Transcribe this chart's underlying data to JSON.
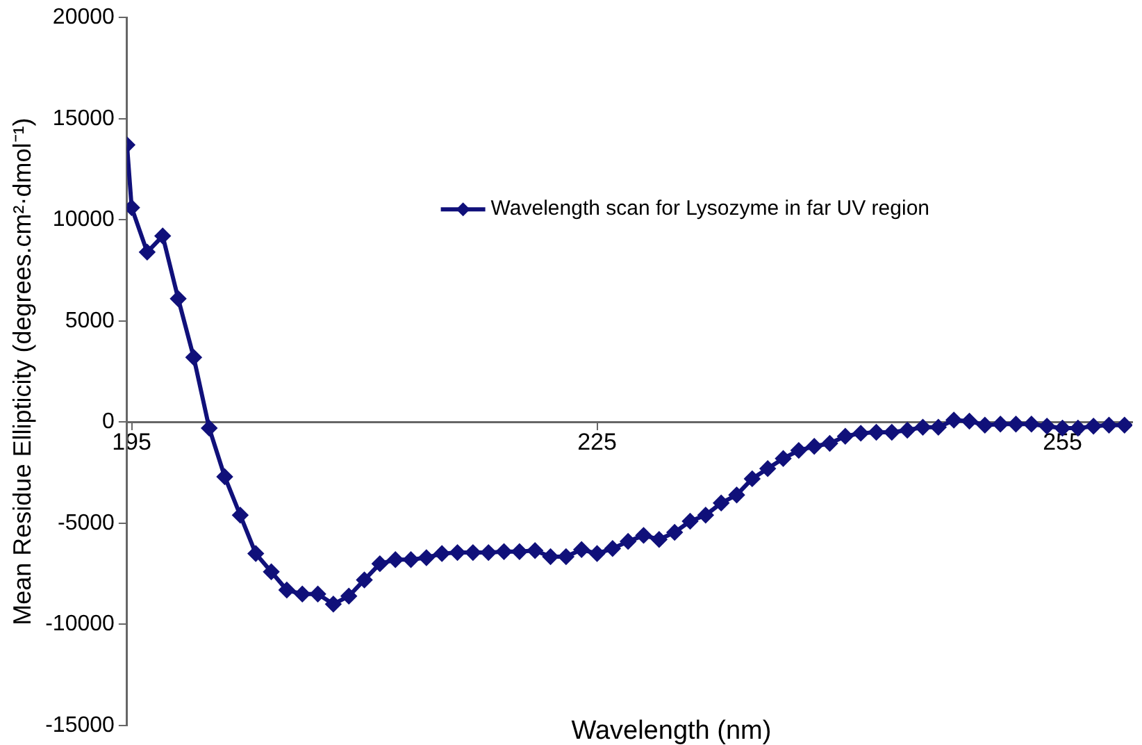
{
  "chart_data": {
    "type": "line",
    "xlabel": "Wavelength (nm)",
    "ylabel": "Mean Residue Ellipticity (degrees.cm²·dmol⁻¹)",
    "xlim": [
      194.7,
      259.5
    ],
    "xticks": [
      195,
      225,
      255
    ],
    "ylim": [
      -15000,
      20000
    ],
    "yticks": [
      -15000,
      -10000,
      -5000,
      0,
      5000,
      10000,
      15000,
      20000
    ],
    "grid": false,
    "legend": "top right",
    "marker": "diamond",
    "line_style": "solid",
    "series": [
      {
        "name": "Wavelength scan for Lysozyme in far UV region",
        "color": "#10107a",
        "x": [
          194.7,
          195,
          196,
          197,
          198,
          199,
          200,
          201,
          202,
          203,
          204,
          205,
          206,
          207,
          208,
          209,
          210,
          211,
          212,
          213,
          214,
          215,
          216,
          217,
          218,
          219,
          220,
          221,
          222,
          223,
          224,
          225,
          226,
          227,
          228,
          229,
          230,
          231,
          232,
          233,
          234,
          235,
          236,
          237,
          238,
          239,
          240,
          241,
          242,
          243,
          244,
          245,
          246,
          247,
          248,
          249,
          250,
          251,
          252,
          253,
          254,
          255,
          256,
          257,
          258,
          259
        ],
        "values": [
          13700,
          10600,
          8400,
          9200,
          6100,
          3200,
          -300,
          -2700,
          -4600,
          -6500,
          -7400,
          -8300,
          -8500,
          -8500,
          -9000,
          -8600,
          -7800,
          -7000,
          -6800,
          -6800,
          -6700,
          -6500,
          -6450,
          -6450,
          -6450,
          -6400,
          -6400,
          -6350,
          -6650,
          -6650,
          -6300,
          -6500,
          -6250,
          -5900,
          -5600,
          -5800,
          -5450,
          -4900,
          -4600,
          -4000,
          -3600,
          -2800,
          -2300,
          -1800,
          -1400,
          -1200,
          -1050,
          -700,
          -550,
          -500,
          -500,
          -400,
          -250,
          -250,
          100,
          50,
          -150,
          -100,
          -100,
          -100,
          -200,
          -300,
          -300,
          -200,
          -150,
          -150
        ]
      }
    ]
  }
}
